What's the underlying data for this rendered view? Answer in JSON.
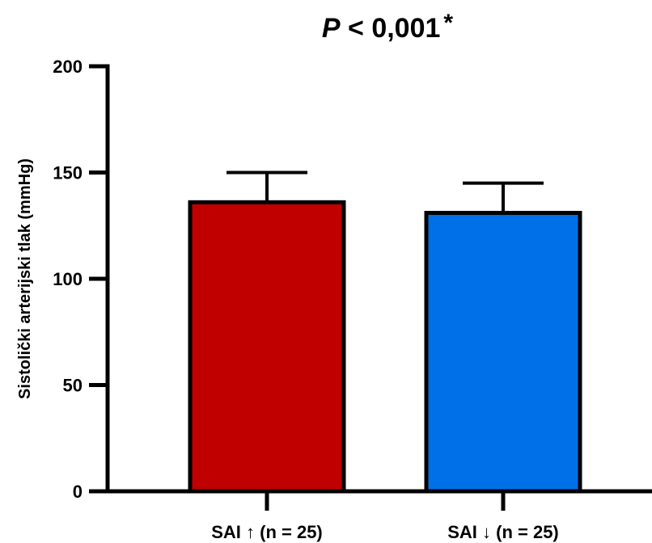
{
  "chart_data": {
    "type": "bar",
    "title": {
      "p_symbol": "P",
      "p_rest": " < 0,001",
      "significance_mark": "*"
    },
    "xlabel": "",
    "ylabel": "Sistolički arterijski tlak (mmHg)",
    "ylim": [
      0,
      200
    ],
    "yticks": [
      0,
      50,
      100,
      150,
      200
    ],
    "categories": [
      "SAI ↑ (n = 25)",
      "SAI ↓ (n = 25)"
    ],
    "values": [
      136,
      131
    ],
    "error_upper": [
      150,
      145
    ],
    "colors": [
      "#c00000",
      "#0070e8"
    ],
    "grid": false,
    "legend": "none"
  }
}
